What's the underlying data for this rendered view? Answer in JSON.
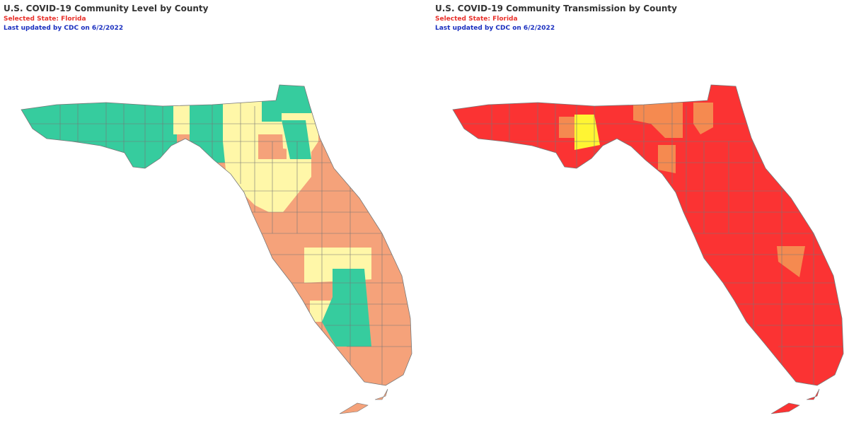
{
  "panels": [
    {
      "title": "U.S. COVID-19 Community Level by County",
      "selected": "Selected State: Florida",
      "updated": "Last updated by CDC on 6/2/2022"
    },
    {
      "title": "U.S. COVID-19 Community Transmission by County",
      "selected": "Selected State: Florida",
      "updated": "Last updated by CDC on 6/2/2022"
    }
  ]
}
